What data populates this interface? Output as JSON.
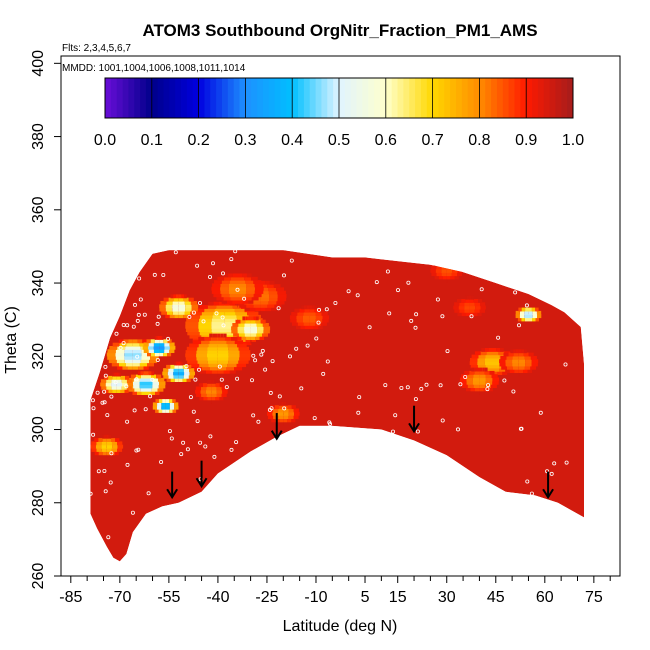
{
  "chart_data": {
    "type": "heatmap",
    "title": "ATOM3 Southbound OrgNitr_Fraction_PM1_AMS",
    "flights_note": "Flts: 2,3,4,5,6,7",
    "mmdd_note": "MMDD: 1001,1004,1006,1008,1011,1014",
    "xlabel": "Latitude (deg N)",
    "ylabel": "Theta (C)",
    "xlim": [
      -88,
      83
    ],
    "ylim": [
      260,
      402
    ],
    "x_ticks": [
      -85,
      -70,
      -55,
      -40,
      -25,
      -10,
      5,
      15,
      30,
      45,
      60,
      75
    ],
    "x_minor_ticks": [
      -80,
      -75,
      -65,
      -60,
      -50,
      -45,
      -35,
      -30,
      -20,
      -15,
      -5,
      0,
      10,
      20,
      25,
      35,
      40,
      50,
      55,
      65,
      70,
      80
    ],
    "y_ticks": [
      260,
      280,
      300,
      320,
      340,
      360,
      380,
      400
    ],
    "colorbar": {
      "min": 0.0,
      "max": 1.0,
      "ticks": [
        "0.0",
        "0.1",
        "0.2",
        "0.3",
        "0.4",
        "0.5",
        "0.6",
        "0.7",
        "0.8",
        "0.9",
        "1.0"
      ],
      "colors": [
        "#6a0dd8",
        "#00008b",
        "#0000e0",
        "#1e90ff",
        "#00bfff",
        "#e0f4ff",
        "#ffffcc",
        "#ffd700",
        "#ff8c00",
        "#ff1a00",
        "#a51c1c"
      ]
    },
    "field": {
      "background_value": 0.95,
      "boundary_top": [
        [
          -79,
          308
        ],
        [
          -76,
          316
        ],
        [
          -73,
          325
        ],
        [
          -70,
          331
        ],
        [
          -67,
          338
        ],
        [
          -64,
          343
        ],
        [
          -60,
          348
        ],
        [
          -55,
          349
        ],
        [
          -20,
          349
        ],
        [
          -5,
          347
        ],
        [
          5,
          347
        ],
        [
          15,
          346
        ],
        [
          25,
          345
        ],
        [
          35,
          343
        ],
        [
          45,
          340
        ],
        [
          55,
          337
        ],
        [
          62,
          334
        ],
        [
          66,
          332
        ],
        [
          71,
          328
        ],
        [
          72,
          318
        ]
      ],
      "boundary_bottom": [
        [
          72,
          276
        ],
        [
          68,
          278
        ],
        [
          64,
          280
        ],
        [
          57,
          282
        ],
        [
          48,
          283
        ],
        [
          40,
          287
        ],
        [
          30,
          293
        ],
        [
          20,
          297
        ],
        [
          10,
          300
        ],
        [
          -5,
          301
        ],
        [
          -15,
          301
        ],
        [
          -22,
          298
        ],
        [
          -30,
          294
        ],
        [
          -40,
          288
        ],
        [
          -45,
          283
        ],
        [
          -52,
          280
        ],
        [
          -57,
          279
        ],
        [
          -62,
          277
        ],
        [
          -66,
          272
        ],
        [
          -68,
          266
        ],
        [
          -70,
          264
        ],
        [
          -72,
          265
        ],
        [
          -74,
          268
        ],
        [
          -77,
          273
        ],
        [
          -79,
          277
        ]
      ],
      "patches": [
        {
          "lat": -38,
          "theta": 328,
          "v": 0.62,
          "r": 12
        },
        {
          "lat": -30,
          "theta": 327,
          "v": 0.55,
          "r": 6
        },
        {
          "lat": -40,
          "theta": 320,
          "v": 0.7,
          "r": 10
        },
        {
          "lat": -66,
          "theta": 320,
          "v": 0.45,
          "r": 8
        },
        {
          "lat": -58,
          "theta": 322,
          "v": 0.3,
          "r": 5
        },
        {
          "lat": -52,
          "theta": 315,
          "v": 0.35,
          "r": 5
        },
        {
          "lat": -62,
          "theta": 312,
          "v": 0.4,
          "r": 6
        },
        {
          "lat": -56,
          "theta": 306,
          "v": 0.35,
          "r": 4
        },
        {
          "lat": -71,
          "theta": 312,
          "v": 0.5,
          "r": 5
        },
        {
          "lat": -74,
          "theta": 295,
          "v": 0.7,
          "r": 5
        },
        {
          "lat": -52,
          "theta": 333,
          "v": 0.55,
          "r": 6
        },
        {
          "lat": -42,
          "theta": 310,
          "v": 0.8,
          "r": 5
        },
        {
          "lat": -20,
          "theta": 304,
          "v": 0.78,
          "r": 5
        },
        {
          "lat": -27,
          "theta": 336,
          "v": 0.82,
          "r": 8
        },
        {
          "lat": -34,
          "theta": 338,
          "v": 0.8,
          "r": 8
        },
        {
          "lat": -12,
          "theta": 330,
          "v": 0.84,
          "r": 6
        },
        {
          "lat": 44,
          "theta": 318,
          "v": 0.72,
          "r": 7
        },
        {
          "lat": 40,
          "theta": 313,
          "v": 0.78,
          "r": 6
        },
        {
          "lat": 52,
          "theta": 318,
          "v": 0.8,
          "r": 6
        },
        {
          "lat": 55,
          "theta": 331,
          "v": 0.45,
          "r": 4
        },
        {
          "lat": 37,
          "theta": 333,
          "v": 0.86,
          "r": 5
        },
        {
          "lat": 30,
          "theta": 343,
          "v": 0.85,
          "r": 5
        }
      ]
    },
    "arrows": [
      {
        "lat": -54,
        "theta": 285
      },
      {
        "lat": -45,
        "theta": 288
      },
      {
        "lat": -22,
        "theta": 301
      },
      {
        "lat": 20,
        "theta": 303
      },
      {
        "lat": 61,
        "theta": 285
      }
    ]
  }
}
